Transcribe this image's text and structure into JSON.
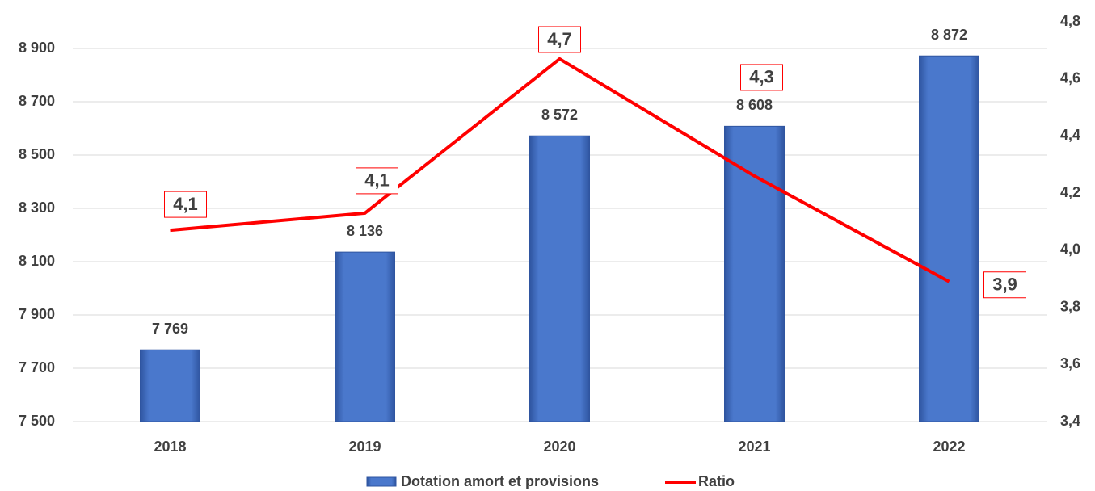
{
  "chart_data": {
    "type": "bar_line",
    "categories": [
      "2018",
      "2019",
      "2020",
      "2021",
      "2022"
    ],
    "series": [
      {
        "name": "Dotation amort et provisions",
        "color": "#4472c4",
        "type": "bar",
        "values": [
          7769,
          8136,
          8572,
          8608,
          8872
        ],
        "value_labels": [
          "7 769",
          "8 136",
          "8 572",
          "8 608",
          "8 872"
        ]
      },
      {
        "name": "Ratio",
        "color": "#ff0000",
        "type": "line",
        "axis": "y2",
        "values": [
          4.07,
          4.13,
          4.67,
          4.26,
          3.89
        ],
        "value_labels": [
          "4,1",
          "4,1",
          "4,7",
          "4,3",
          "3,9"
        ]
      }
    ],
    "ylim": [
      7500,
      9000
    ],
    "yticks": [
      {
        "value": 7500,
        "label": "7 500"
      },
      {
        "value": 7700,
        "label": "7 700"
      },
      {
        "value": 7900,
        "label": "7 900"
      },
      {
        "value": 8100,
        "label": "8 100"
      },
      {
        "value": 8300,
        "label": "8 300"
      },
      {
        "value": 8500,
        "label": "8 500"
      },
      {
        "value": 8700,
        "label": "8 700"
      },
      {
        "value": 8900,
        "label": "8 900"
      }
    ],
    "y2lim": [
      3.4,
      4.8
    ],
    "y2ticks": [
      {
        "value": 3.4,
        "label": "3,4"
      },
      {
        "value": 3.6,
        "label": "3,6"
      },
      {
        "value": 3.8,
        "label": "3,8"
      },
      {
        "value": 4.0,
        "label": "4,0"
      },
      {
        "value": 4.2,
        "label": "4,2"
      },
      {
        "value": 4.4,
        "label": "4,4"
      },
      {
        "value": 4.6,
        "label": "4,6"
      },
      {
        "value": 4.8,
        "label": "4,8"
      }
    ],
    "grid": true,
    "legend": "bottom"
  }
}
